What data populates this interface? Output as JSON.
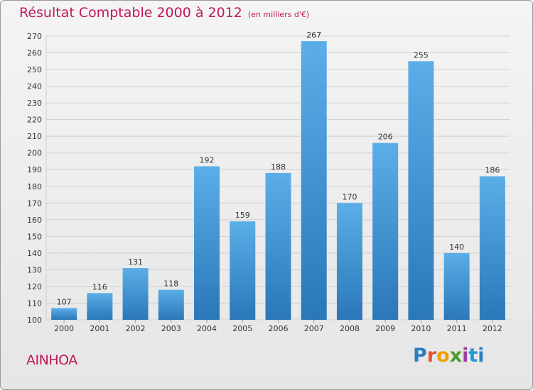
{
  "header": {
    "title": "Résultat Comptable 2000 à 2012",
    "subtitle": "(en milliers d'€)"
  },
  "footer": {
    "commune": "AINHOA",
    "logo_text": "Proxiti",
    "logo_letters": [
      "P",
      "r",
      "o",
      "x",
      "i",
      "t",
      "i"
    ]
  },
  "colors": {
    "bar_top": "#5baee8",
    "bar_bottom": "#2a77b8",
    "accent": "#c2185b"
  },
  "chart_data": {
    "type": "bar",
    "title": "Résultat Comptable 2000 à 2012",
    "subtitle": "(en milliers d'€)",
    "categories": [
      "2000",
      "2001",
      "2002",
      "2003",
      "2004",
      "2005",
      "2006",
      "2007",
      "2008",
      "2009",
      "2010",
      "2011",
      "2012"
    ],
    "values": [
      107,
      116,
      131,
      118,
      192,
      159,
      188,
      267,
      170,
      206,
      255,
      140,
      186
    ],
    "ylim": [
      100,
      270
    ],
    "ytick_step": 10,
    "grid": true,
    "legend": "none"
  }
}
